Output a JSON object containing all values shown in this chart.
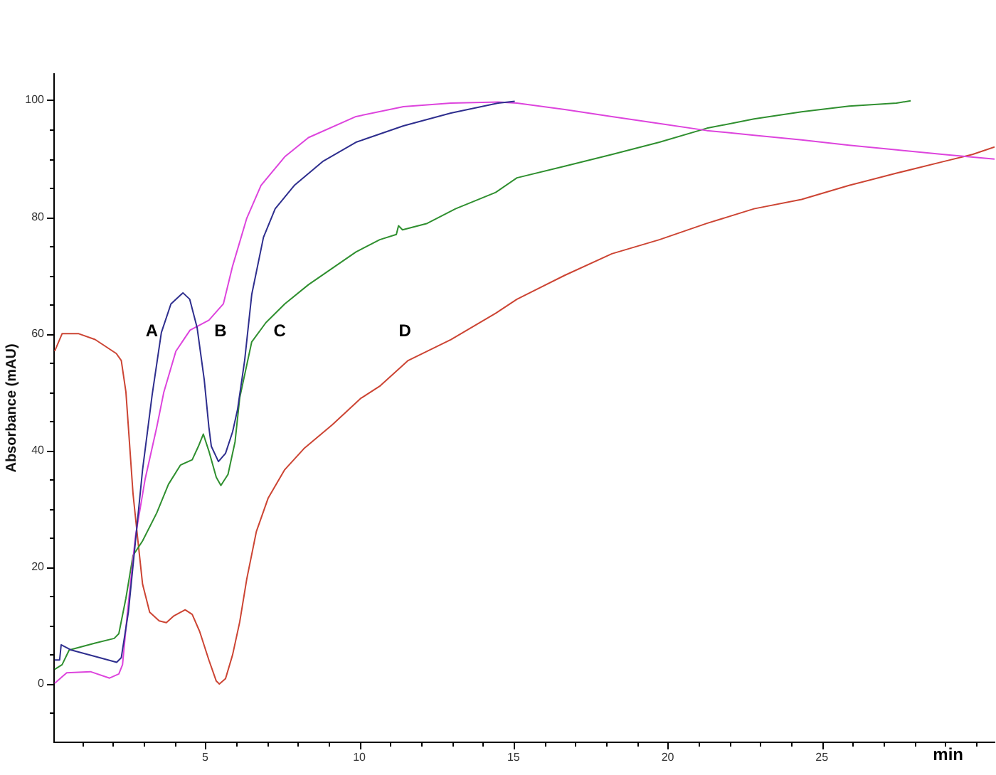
{
  "chart_data": {
    "type": "line",
    "xlabel": "min",
    "ylabel": "Absorbance (mAU)",
    "xlim": [
      0.1,
      30.6
    ],
    "ylim": [
      -10,
      104.5
    ],
    "xticks": [
      {
        "value": 1,
        "label": null
      },
      {
        "value": 2,
        "label": null
      },
      {
        "value": 3,
        "label": null
      },
      {
        "value": 4,
        "label": null
      },
      5,
      {
        "value": 6,
        "label": null
      },
      {
        "value": 7,
        "label": null
      },
      {
        "value": 8,
        "label": null
      },
      {
        "value": 9,
        "label": null
      },
      10,
      {
        "value": 11,
        "label": null
      },
      {
        "value": 12,
        "label": null
      },
      {
        "value": 13,
        "label": null
      },
      {
        "value": 14,
        "label": null
      },
      15,
      {
        "value": 16,
        "label": null
      },
      {
        "value": 17,
        "label": null
      },
      {
        "value": 18,
        "label": null
      },
      {
        "value": 19,
        "label": null
      },
      20,
      {
        "value": 21,
        "label": null
      },
      {
        "value": 22,
        "label": null
      },
      {
        "value": 23,
        "label": null
      },
      {
        "value": 24,
        "label": null
      },
      25,
      {
        "value": 26,
        "label": null
      },
      {
        "value": 27,
        "label": null
      },
      {
        "value": 28,
        "label": null
      },
      {
        "value": 29,
        "label": null
      },
      {
        "value": 30,
        "label": null
      }
    ],
    "yticks": [
      {
        "value": -5,
        "label": null
      },
      0,
      {
        "value": 5,
        "label": null
      },
      {
        "value": 10,
        "label": null
      },
      {
        "value": 15,
        "label": null
      },
      20,
      {
        "value": 25,
        "label": null
      },
      {
        "value": 30,
        "label": null
      },
      {
        "value": 35,
        "label": null
      },
      40,
      {
        "value": 45,
        "label": null
      },
      {
        "value": 50,
        "label": null
      },
      {
        "value": 55,
        "label": null
      },
      60,
      {
        "value": 65,
        "label": null
      },
      {
        "value": 70,
        "label": null
      },
      {
        "value": 75,
        "label": null
      },
      80,
      {
        "value": 85,
        "label": null
      },
      {
        "value": 90,
        "label": null
      },
      {
        "value": 95,
        "label": null
      },
      100
    ],
    "series": [
      {
        "color": "#2e2e8e",
        "x": [
          0.12,
          0.28,
          0.33,
          0.66,
          1.43,
          2.13,
          2.28,
          2.51,
          2.74,
          2.97,
          3.28,
          3.58,
          3.89,
          4.28,
          4.5,
          4.74,
          4.97,
          5.12,
          5.2,
          5.43,
          5.66,
          5.89,
          6.05,
          6.28,
          6.51,
          6.89,
          7.27,
          7.89,
          8.81,
          9.89,
          11.43,
          12.97,
          14.5,
          15.04
        ],
        "values": [
          4.1,
          4.1,
          6.7,
          5.8,
          4.7,
          3.7,
          4.5,
          12.3,
          24.5,
          36.7,
          49.5,
          60.2,
          65.1,
          67,
          65.9,
          61,
          52.1,
          44,
          40.7,
          38.1,
          39.5,
          43.2,
          47,
          55.4,
          66.7,
          76.5,
          81.4,
          85.4,
          89.5,
          92.8,
          95.6,
          97.8,
          99.5,
          99.8
        ]
      },
      {
        "color": "#dd44dd",
        "x": [
          0.12,
          0.51,
          1.28,
          1.9,
          2.2,
          2.32,
          2.48,
          2.74,
          3.05,
          3.43,
          3.66,
          4.05,
          4.51,
          5.12,
          5.59,
          5.89,
          6.35,
          6.81,
          7.58,
          8.35,
          9.89,
          11.43,
          12.97,
          14.5,
          15.11,
          16.66,
          18.19,
          19.73,
          21.27,
          22.8,
          24.34,
          25.88,
          27.42,
          28.95,
          30.6
        ],
        "values": [
          0.1,
          1.9,
          2.1,
          1,
          1.7,
          3.3,
          12.3,
          25.3,
          35,
          44,
          50,
          57,
          60.6,
          62.3,
          65.1,
          71.6,
          79.8,
          85.4,
          90.3,
          93.6,
          97.2,
          98.9,
          99.5,
          99.7,
          99.5,
          98.4,
          97.2,
          96,
          94.8,
          94,
          93.2,
          92.3,
          91.5,
          90.7,
          89.9
        ]
      },
      {
        "color": "#2f8f2f",
        "x": [
          0.12,
          0.36,
          0.59,
          1.43,
          2.05,
          2.2,
          2.43,
          2.66,
          2.97,
          3.43,
          3.81,
          4.2,
          4.58,
          4.78,
          4.94,
          5.12,
          5.36,
          5.51,
          5.74,
          5.97,
          6.12,
          6.51,
          6.97,
          7.58,
          8.35,
          9.12,
          9.89,
          10.66,
          11.2,
          11.27,
          11.4,
          12.2,
          13.12,
          14.42,
          15.11,
          16.66,
          18.19,
          19.73,
          21.27,
          22.8,
          24.34,
          25.88,
          27.42,
          27.88
        ],
        "values": [
          2.5,
          3.3,
          5.8,
          7,
          7.8,
          8.6,
          14.7,
          22,
          24.5,
          29.3,
          34.2,
          37.5,
          38.4,
          40.7,
          42.8,
          39.9,
          35.4,
          34,
          35.9,
          41.5,
          49,
          58.6,
          61.9,
          65.1,
          68.4,
          71.2,
          74,
          76.1,
          77,
          78.5,
          77.8,
          78.9,
          81.4,
          84.2,
          86.7,
          88.7,
          90.7,
          92.8,
          95.2,
          96.8,
          98,
          99,
          99.5,
          99.9
        ]
      },
      {
        "color": "#cc4433",
        "x": [
          0.12,
          0.36,
          0.9,
          1.43,
          2.12,
          2.28,
          2.43,
          2.51,
          2.66,
          2.82,
          2.97,
          3.2,
          3.51,
          3.74,
          3.97,
          4.35,
          4.58,
          4.82,
          5.12,
          5.36,
          5.46,
          5.66,
          5.89,
          6.12,
          6.35,
          6.66,
          7.04,
          7.58,
          8.2,
          9.12,
          10.04,
          10.66,
          11.58,
          12.97,
          14.42,
          15.11,
          16.66,
          18.19,
          19.73,
          21.27,
          22.8,
          24.34,
          25.88,
          27.42,
          28.95,
          29.88,
          30.6
        ],
        "values": [
          57,
          60,
          60,
          59,
          56.6,
          55.4,
          50,
          44,
          32.6,
          24.5,
          17.1,
          12.3,
          10.8,
          10.5,
          11.6,
          12.7,
          11.9,
          9,
          4.1,
          0.5,
          0,
          0.9,
          5,
          10.6,
          18,
          26.1,
          31.8,
          36.7,
          40.3,
          44.4,
          48.9,
          51,
          55.4,
          59,
          63.5,
          65.9,
          70,
          73.7,
          76.1,
          78.9,
          81.4,
          83,
          85.4,
          87.5,
          89.5,
          90.7,
          92
        ]
      }
    ],
    "annotations": [
      "A",
      "B",
      "C",
      "D"
    ]
  }
}
